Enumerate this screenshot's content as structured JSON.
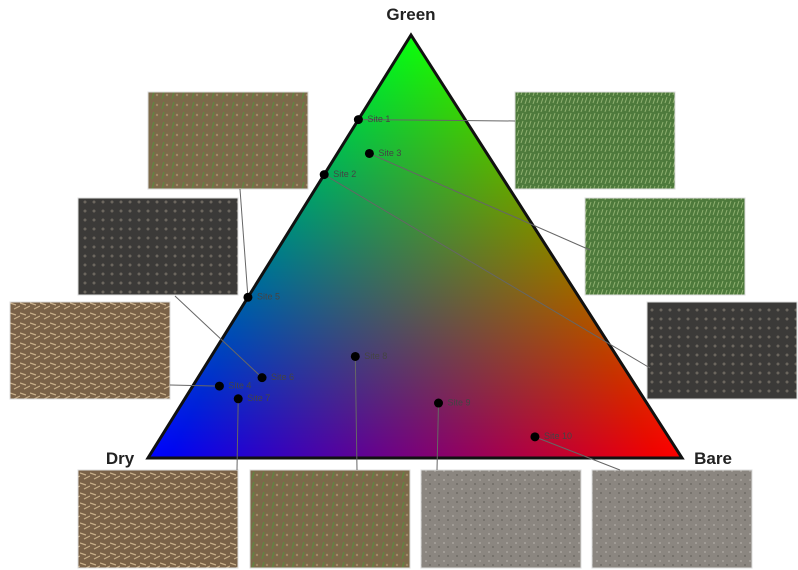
{
  "chart_data": {
    "type": "ternary",
    "axes": [
      "Green",
      "Dry",
      "Bare"
    ],
    "points": [
      {
        "name": "Site 1",
        "values": [
          0.8,
          0.2,
          0
        ]
      },
      {
        "name": "Site 2",
        "values": [
          0.67,
          0.33,
          0
        ]
      },
      {
        "name": "Site 3",
        "values": [
          0.72,
          0.22,
          0.06
        ]
      },
      {
        "name": "Site 4",
        "values": [
          0.17,
          0.78,
          0.05
        ]
      },
      {
        "name": "Site 5",
        "values": [
          0.38,
          0.62,
          0
        ]
      },
      {
        "name": "Site 6",
        "values": [
          0.19,
          0.69,
          0.12
        ]
      },
      {
        "name": "Site 7",
        "values": [
          0.14,
          0.76,
          0.1
        ]
      },
      {
        "name": "Site 8",
        "values": [
          0.24,
          0.49,
          0.27
        ]
      },
      {
        "name": "Site 9",
        "values": [
          0.13,
          0.39,
          0.48
        ]
      },
      {
        "name": "Site 10",
        "values": [
          0.05,
          0.25,
          0.7
        ]
      }
    ]
  }
}
